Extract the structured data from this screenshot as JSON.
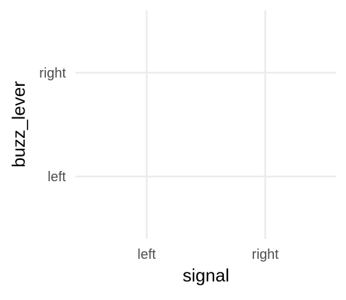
{
  "chart_data": {
    "type": "scatter",
    "title": "",
    "xlabel": "signal",
    "ylabel": "buzz_lever",
    "x_categories": [
      "left",
      "right"
    ],
    "y_categories": [
      "left",
      "right"
    ],
    "points": [],
    "grid": true,
    "legend": "none",
    "colors": {
      "gridline": "#ebebeb",
      "tick_text": "#4d4d4d",
      "axis_title": "#000000",
      "background": "#ffffff"
    }
  }
}
